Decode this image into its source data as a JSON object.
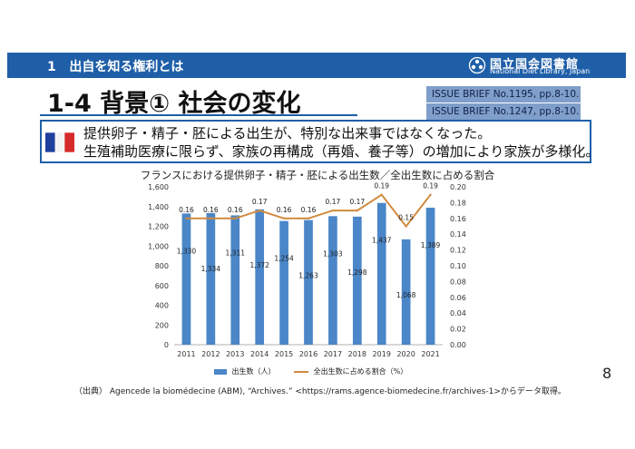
{
  "header": {
    "section_number": "1",
    "section_title": "出自を知る権利とは",
    "logo_jp": "国立国会図書館",
    "logo_en": "National Diet Library, Japan"
  },
  "slide": {
    "title": "1-4 背景① 社会の変化",
    "refs": [
      "ISSUE BRIEF No.1195, pp.8-10.",
      "ISSUE BRIEF No.1247, pp.8-10."
    ],
    "note_lines": [
      "提供卵子・精子・胚による出生が、特別な出来事ではなくなった。",
      "生殖補助医療に限らず、家族の再構成（再婚、養子等）の増加により家族が多様化。"
    ],
    "source": "（出典） Agencede la biomédecine (ABM), “Archives.” <https://rams.agence-biomedecine.fr/archives-1>からデータ取得。",
    "page_number": "8"
  },
  "chart_data": {
    "type": "bar",
    "title": "フランスにおける提供卵子・精子・胚による出生数／全出生数に占める割合",
    "categories": [
      "2011",
      "2012",
      "2013",
      "2014",
      "2015",
      "2016",
      "2017",
      "2018",
      "2019",
      "2020",
      "2021"
    ],
    "series": [
      {
        "name": "出生数（人）",
        "type": "bar",
        "axis": "left",
        "color": "#4a86c8",
        "values": [
          1330,
          1334,
          1311,
          1372,
          1254,
          1263,
          1303,
          1298,
          1437,
          1068,
          1389
        ],
        "labels": [
          "1,330",
          "1,334",
          "1,311",
          "1,372",
          "1,254",
          "1,263",
          "1,303",
          "1,298",
          "1,437",
          "1,068",
          "1,389"
        ]
      },
      {
        "name": "全出生数に占める割合（%）",
        "type": "line",
        "axis": "right",
        "color": "#d08a3e",
        "values": [
          0.16,
          0.16,
          0.16,
          0.17,
          0.16,
          0.16,
          0.17,
          0.17,
          0.19,
          0.15,
          0.19
        ],
        "labels": [
          "0.16",
          "0.16",
          "0.16",
          "0.17",
          "0.16",
          "0.16",
          "0.17",
          "0.17",
          "0.19",
          "0.15",
          "0.19"
        ]
      }
    ],
    "yleft": {
      "range": [
        0,
        1600
      ],
      "ticks": [
        "0",
        "200",
        "400",
        "600",
        "800",
        "1,000",
        "1,200",
        "1,400",
        "1,600"
      ]
    },
    "yright": {
      "range": [
        0,
        0.2
      ],
      "ticks": [
        "0.00",
        "0.02",
        "0.04",
        "0.06",
        "0.08",
        "0.10",
        "0.12",
        "0.14",
        "0.16",
        "0.18",
        "0.20"
      ]
    },
    "legend_position": "bottom",
    "grid": false
  }
}
